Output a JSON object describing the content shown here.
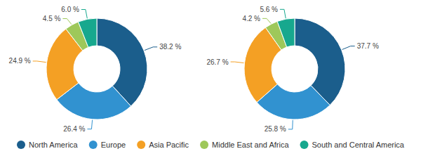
{
  "chart_data": [
    {
      "type": "donut",
      "categories": [
        "North America",
        "Europe",
        "Asia Pacific",
        "Middle East and Africa",
        "South and Central America"
      ],
      "values": [
        38.2,
        26.4,
        24.9,
        4.5,
        6.0
      ],
      "value_labels": [
        "38.2 %",
        "26.4 %",
        "24.9 %",
        "4.5 %",
        "6.0 %"
      ],
      "colors": [
        "#1b5e8c",
        "#3192d0",
        "#f4a024",
        "#9ec85a",
        "#17a88e"
      ],
      "data_labels": true,
      "legend": "bottom"
    },
    {
      "type": "donut",
      "categories": [
        "North America",
        "Europe",
        "Asia Pacific",
        "Middle East and Africa",
        "South and Central America"
      ],
      "values": [
        37.7,
        25.8,
        26.7,
        4.2,
        5.6
      ],
      "value_labels": [
        "37.7 %",
        "25.8 %",
        "26.7 %",
        "4.2 %",
        "5.6 %"
      ],
      "colors": [
        "#1b5e8c",
        "#3192d0",
        "#f4a024",
        "#9ec85a",
        "#17a88e"
      ],
      "data_labels": true,
      "legend": "bottom"
    }
  ]
}
